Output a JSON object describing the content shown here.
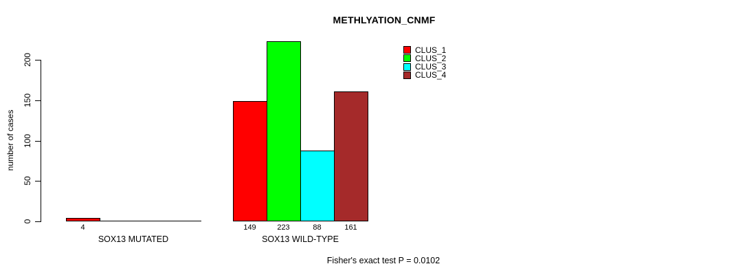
{
  "chart_data": {
    "type": "bar",
    "title": "METHLYATION_CNMF",
    "ylabel": "number of cases",
    "xlabel": "",
    "ylim": [
      0,
      223
    ],
    "yticks": [
      0,
      50,
      100,
      150,
      200
    ],
    "grid": false,
    "legend_position": "top-right",
    "categories": [
      "SOX13 MUTATED",
      "SOX13 WILD-TYPE"
    ],
    "series": [
      {
        "name": "CLUS_1",
        "color": "#ff0000",
        "values": [
          4,
          149
        ]
      },
      {
        "name": "CLUS_2",
        "color": "#00ff00",
        "values": [
          0,
          223
        ]
      },
      {
        "name": "CLUS_3",
        "color": "#00ffff",
        "values": [
          0,
          88
        ]
      },
      {
        "name": "CLUS_4",
        "color": "#a52a2a",
        "values": [
          0,
          161
        ]
      }
    ],
    "bar_value_labels": [
      [
        "4",
        "",
        "",
        ""
      ],
      [
        "149",
        "223",
        "88",
        "161"
      ]
    ],
    "annotation": "Fisher's exact test P = 0.0102"
  }
}
